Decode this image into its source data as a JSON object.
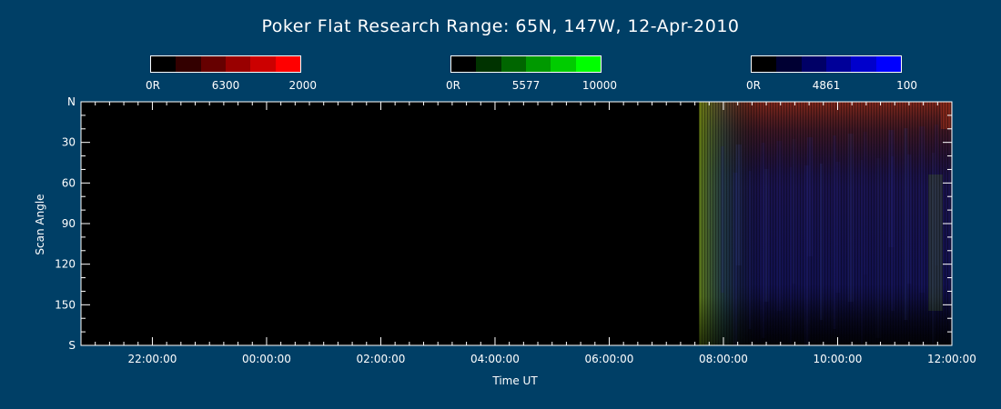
{
  "chart_data": {
    "type": "heatmap",
    "title": "Poker Flat Research Range: 65N, 147W, 12-Apr-2010",
    "xlabel": "Time UT",
    "ylabel": "Scan Angle",
    "x_tick_labels": [
      "22:00:00",
      "00:00:00",
      "02:00:00",
      "04:00:00",
      "06:00:00",
      "08:00:00",
      "10:00:00",
      "12:00:00"
    ],
    "x_range_hours": [
      20.75,
      36.0
    ],
    "x_tick_hours": [
      22,
      24,
      26,
      28,
      30,
      32,
      34,
      36
    ],
    "y_tick_labels": [
      "N",
      "30",
      "60",
      "90",
      "120",
      "150",
      "S"
    ],
    "y_tick_values": [
      0,
      30,
      60,
      90,
      120,
      150,
      180
    ],
    "y_range": [
      0,
      180
    ],
    "data_start_hour": 31.57,
    "channels": [
      {
        "wavelength": "6300",
        "min_label": "0R",
        "max_label": "2000",
        "color": "#ff0000"
      },
      {
        "wavelength": "5577",
        "min_label": "0R",
        "max_label": "10000",
        "color": "#00ff00"
      },
      {
        "wavelength": "4861",
        "min_label": "0R",
        "max_label": "100",
        "color": "#0000ff"
      }
    ]
  }
}
